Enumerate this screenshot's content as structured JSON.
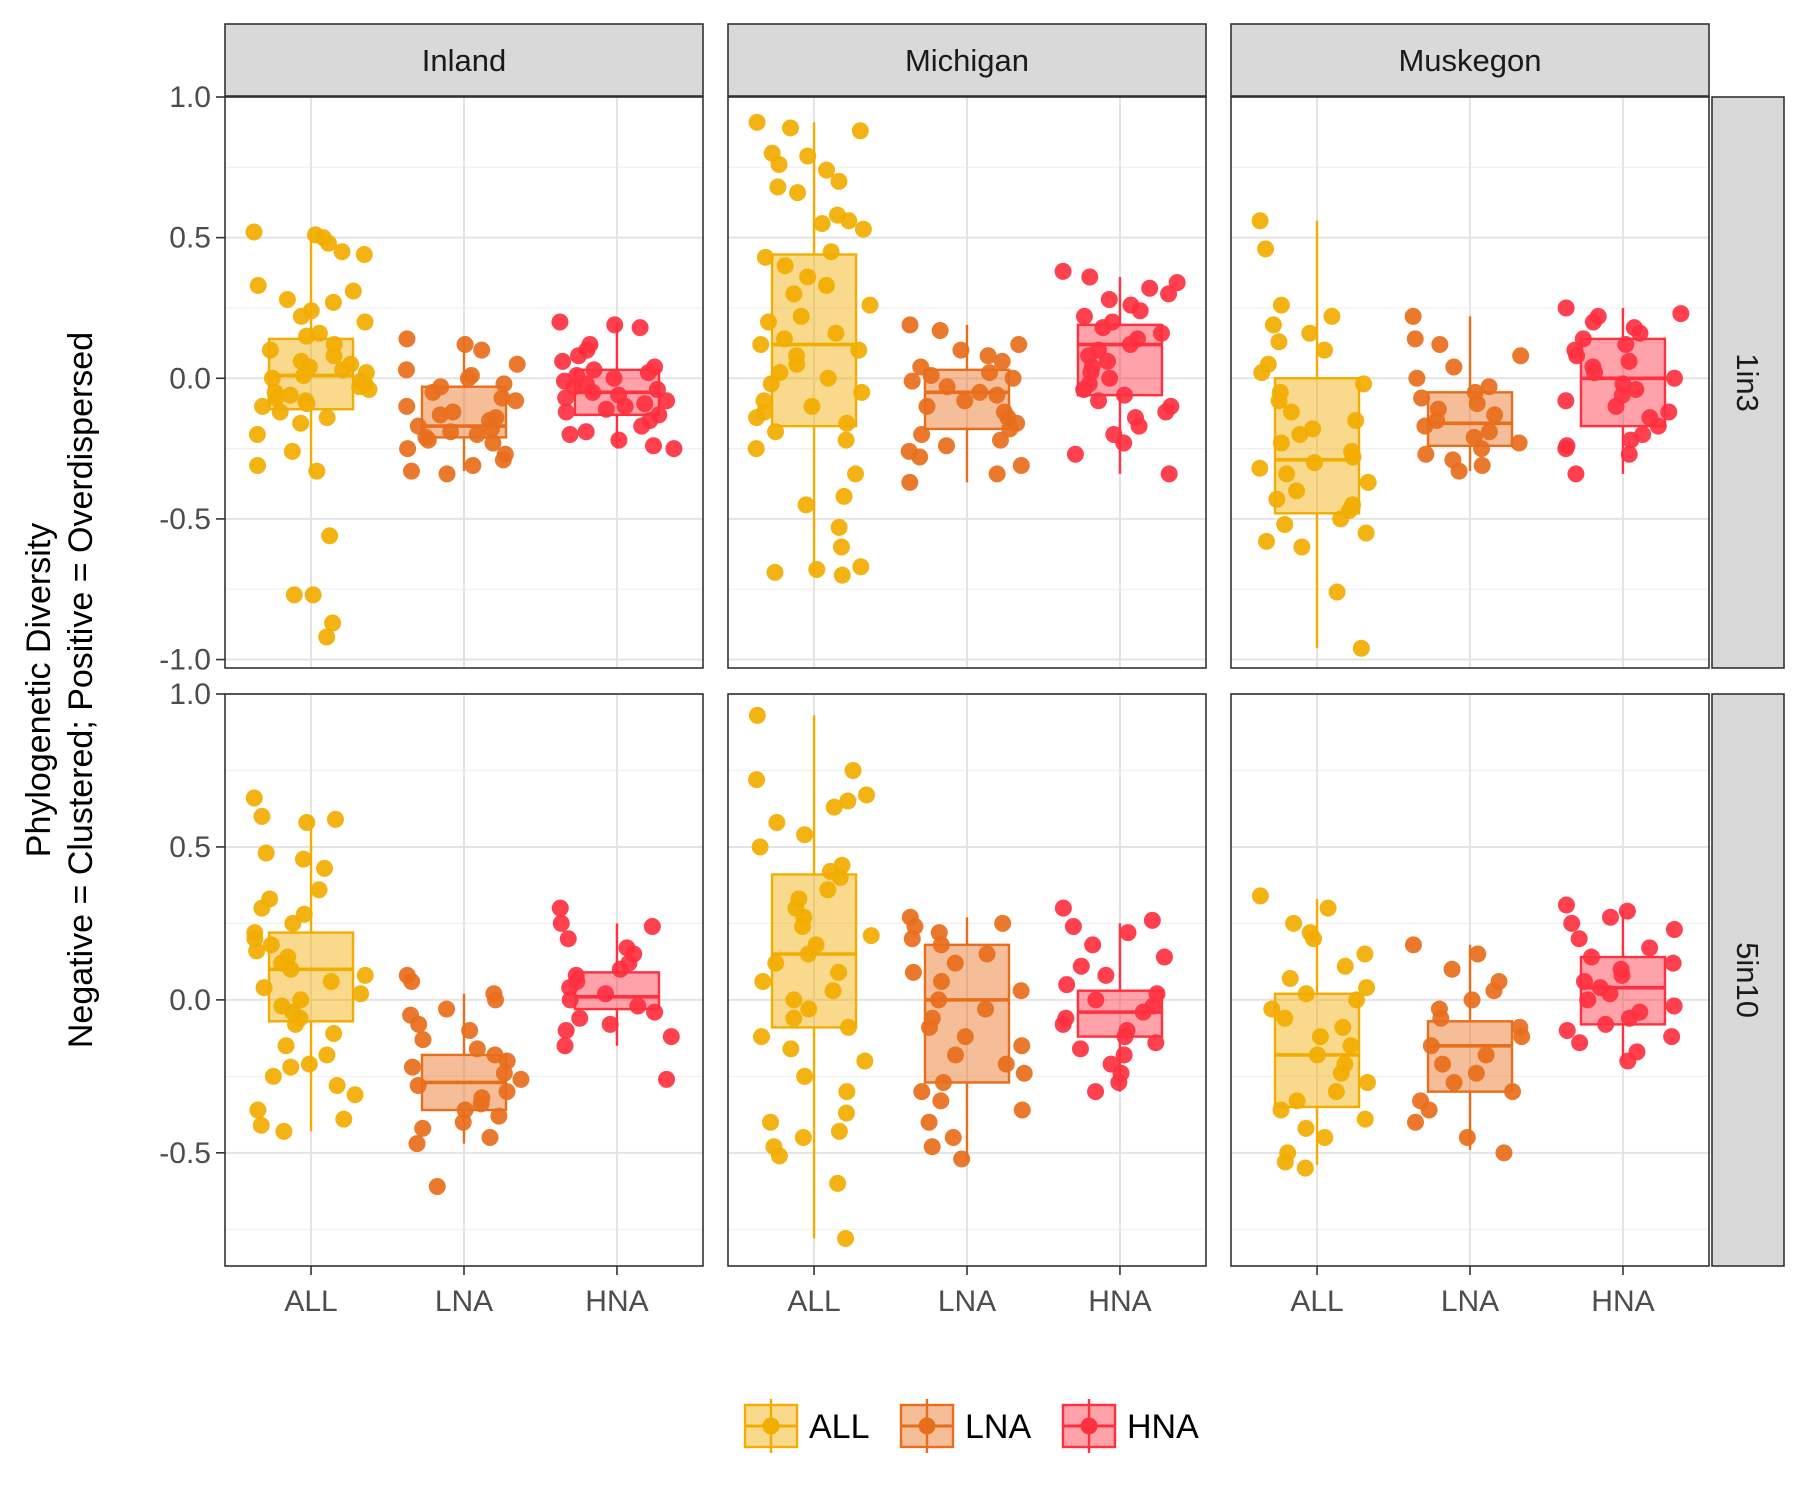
{
  "chart_data": {
    "type": "boxplot",
    "ylabel_lines": [
      "Phylogenetic Diversity",
      "Negative = Clustered; Positive = Overdispersed"
    ],
    "categories": [
      "ALL",
      "LNA",
      "HNA"
    ],
    "colors": {
      "ALL": "#F2AD00",
      "LNA": "#E86E1C",
      "HNA": "#FF3040"
    },
    "legend": {
      "position": "bottom",
      "entries": [
        "ALL",
        "LNA",
        "HNA"
      ]
    },
    "grid": true,
    "facet_columns": [
      "Inland",
      "Michigan",
      "Muskegon"
    ],
    "facet_rows": [
      "1in3",
      "5in10"
    ],
    "rows": [
      {
        "label": "1in3",
        "ylim": [
          -1.03,
          1.0
        ],
        "yticks": [
          -1.0,
          -0.5,
          0.0,
          0.5,
          1.0
        ],
        "ytick_labels": [
          "-1.0",
          "-0.5",
          "0.0",
          "0.5",
          "1.0"
        ]
      },
      {
        "label": "5in10",
        "ylim": [
          -0.87,
          1.0
        ],
        "yticks": [
          -0.5,
          0.0,
          0.5,
          1.0
        ],
        "ytick_labels": [
          "-0.5",
          "0.0",
          "0.5",
          "1.0"
        ]
      }
    ],
    "panels": [
      {
        "row": "1in3",
        "column": "Inland",
        "series": [
          {
            "name": "ALL",
            "min": -0.33,
            "q1": -0.11,
            "median": 0.01,
            "q3": 0.14,
            "max": 0.52,
            "points": [
              0.52,
              0.51,
              0.5,
              0.48,
              0.45,
              0.44,
              0.33,
              0.31,
              0.28,
              0.27,
              0.24,
              0.22,
              0.2,
              0.16,
              0.15,
              0.12,
              0.1,
              0.08,
              0.06,
              0.05,
              0.04,
              0.03,
              0.02,
              0.01,
              0.0,
              -0.01,
              -0.02,
              -0.03,
              -0.04,
              -0.05,
              -0.06,
              -0.07,
              -0.08,
              -0.09,
              -0.1,
              -0.12,
              -0.14,
              -0.16,
              -0.2,
              -0.26,
              -0.31,
              -0.33,
              -0.56,
              -0.77,
              -0.77,
              -0.87,
              -0.92
            ]
          },
          {
            "name": "LNA",
            "min": -0.33,
            "q1": -0.21,
            "median": -0.17,
            "q3": -0.03,
            "max": 0.14,
            "points": [
              0.14,
              0.12,
              0.1,
              0.05,
              0.03,
              0.01,
              0.0,
              -0.02,
              -0.03,
              -0.05,
              -0.07,
              -0.08,
              -0.1,
              -0.12,
              -0.13,
              -0.14,
              -0.15,
              -0.17,
              -0.18,
              -0.19,
              -0.2,
              -0.21,
              -0.22,
              -0.23,
              -0.25,
              -0.27,
              -0.29,
              -0.31,
              -0.33,
              -0.34
            ]
          },
          {
            "name": "HNA",
            "min": -0.25,
            "q1": -0.13,
            "median": -0.05,
            "q3": 0.03,
            "max": 0.2,
            "points": [
              0.2,
              0.19,
              0.18,
              0.12,
              0.1,
              0.08,
              0.06,
              0.04,
              0.03,
              0.02,
              0.01,
              0.0,
              -0.01,
              -0.02,
              -0.03,
              -0.04,
              -0.05,
              -0.06,
              -0.07,
              -0.08,
              -0.09,
              -0.1,
              -0.11,
              -0.12,
              -0.13,
              -0.15,
              -0.17,
              -0.19,
              -0.2,
              -0.22,
              -0.24,
              -0.25
            ]
          }
        ]
      },
      {
        "row": "1in3",
        "column": "Michigan",
        "series": [
          {
            "name": "ALL",
            "min": -0.7,
            "q1": -0.17,
            "median": 0.12,
            "q3": 0.44,
            "max": 0.91,
            "points": [
              0.91,
              0.89,
              0.88,
              0.8,
              0.79,
              0.76,
              0.74,
              0.7,
              0.68,
              0.66,
              0.58,
              0.56,
              0.55,
              0.53,
              0.45,
              0.43,
              0.4,
              0.36,
              0.33,
              0.3,
              0.26,
              0.22,
              0.2,
              0.16,
              0.14,
              0.12,
              0.1,
              0.08,
              0.05,
              0.02,
              0.0,
              -0.02,
              -0.05,
              -0.08,
              -0.1,
              -0.12,
              -0.14,
              -0.16,
              -0.19,
              -0.22,
              -0.25,
              -0.34,
              -0.42,
              -0.45,
              -0.53,
              -0.6,
              -0.67,
              -0.68,
              -0.69,
              -0.7
            ]
          },
          {
            "name": "LNA",
            "min": -0.37,
            "q1": -0.18,
            "median": -0.05,
            "q3": 0.03,
            "max": 0.19,
            "points": [
              0.19,
              0.17,
              0.12,
              0.1,
              0.08,
              0.06,
              0.04,
              0.02,
              0.01,
              0.0,
              -0.01,
              -0.03,
              -0.05,
              -0.06,
              -0.08,
              -0.1,
              -0.12,
              -0.14,
              -0.16,
              -0.18,
              -0.2,
              -0.22,
              -0.24,
              -0.26,
              -0.28,
              -0.31,
              -0.34,
              -0.37
            ]
          },
          {
            "name": "HNA",
            "min": -0.34,
            "q1": -0.06,
            "median": 0.12,
            "q3": 0.19,
            "max": 0.36,
            "points": [
              0.38,
              0.36,
              0.34,
              0.32,
              0.3,
              0.28,
              0.26,
              0.24,
              0.22,
              0.2,
              0.18,
              0.16,
              0.14,
              0.12,
              0.1,
              0.08,
              0.06,
              0.04,
              0.02,
              0.0,
              -0.02,
              -0.04,
              -0.06,
              -0.08,
              -0.1,
              -0.12,
              -0.14,
              -0.17,
              -0.2,
              -0.23,
              -0.27,
              -0.34
            ]
          }
        ]
      },
      {
        "row": "1in3",
        "column": "Muskegon",
        "series": [
          {
            "name": "ALL",
            "min": -0.96,
            "q1": -0.48,
            "median": -0.29,
            "q3": 0.0,
            "max": 0.56,
            "points": [
              0.56,
              0.46,
              0.26,
              0.22,
              0.19,
              0.16,
              0.13,
              0.1,
              0.05,
              0.02,
              -0.02,
              -0.05,
              -0.08,
              -0.12,
              -0.15,
              -0.18,
              -0.2,
              -0.23,
              -0.26,
              -0.28,
              -0.3,
              -0.32,
              -0.34,
              -0.37,
              -0.4,
              -0.43,
              -0.45,
              -0.47,
              -0.5,
              -0.52,
              -0.55,
              -0.58,
              -0.6,
              -0.76,
              -0.96
            ]
          },
          {
            "name": "LNA",
            "min": -0.33,
            "q1": -0.24,
            "median": -0.16,
            "q3": -0.05,
            "max": 0.22,
            "points": [
              0.22,
              0.14,
              0.12,
              0.08,
              0.04,
              0.0,
              -0.03,
              -0.05,
              -0.07,
              -0.09,
              -0.11,
              -0.13,
              -0.15,
              -0.17,
              -0.19,
              -0.21,
              -0.23,
              -0.25,
              -0.27,
              -0.29,
              -0.31,
              -0.33
            ]
          },
          {
            "name": "HNA",
            "min": -0.34,
            "q1": -0.17,
            "median": 0.0,
            "q3": 0.14,
            "max": 0.25,
            "points": [
              0.25,
              0.23,
              0.22,
              0.2,
              0.18,
              0.16,
              0.14,
              0.12,
              0.1,
              0.08,
              0.06,
              0.04,
              0.02,
              0.0,
              -0.02,
              -0.04,
              -0.06,
              -0.08,
              -0.1,
              -0.12,
              -0.14,
              -0.17,
              -0.2,
              -0.22,
              -0.24,
              -0.25,
              -0.27,
              -0.34
            ]
          }
        ]
      },
      {
        "row": "5in10",
        "column": "Inland",
        "series": [
          {
            "name": "ALL",
            "min": -0.43,
            "q1": -0.07,
            "median": 0.1,
            "q3": 0.22,
            "max": 0.6,
            "points": [
              0.66,
              0.6,
              0.59,
              0.58,
              0.48,
              0.46,
              0.43,
              0.36,
              0.33,
              0.3,
              0.28,
              0.25,
              0.22,
              0.2,
              0.18,
              0.16,
              0.14,
              0.12,
              0.1,
              0.08,
              0.06,
              0.04,
              0.02,
              0.0,
              -0.02,
              -0.04,
              -0.06,
              -0.08,
              -0.11,
              -0.15,
              -0.18,
              -0.21,
              -0.22,
              -0.25,
              -0.28,
              -0.31,
              -0.36,
              -0.39,
              -0.41,
              -0.43
            ]
          },
          {
            "name": "LNA",
            "min": -0.47,
            "q1": -0.36,
            "median": -0.27,
            "q3": -0.18,
            "max": 0.02,
            "points": [
              0.08,
              0.06,
              0.02,
              0.0,
              -0.03,
              -0.05,
              -0.08,
              -0.1,
              -0.13,
              -0.16,
              -0.18,
              -0.2,
              -0.22,
              -0.24,
              -0.26,
              -0.28,
              -0.3,
              -0.32,
              -0.34,
              -0.36,
              -0.38,
              -0.4,
              -0.42,
              -0.45,
              -0.47,
              -0.61
            ]
          },
          {
            "name": "HNA",
            "min": -0.15,
            "q1": -0.03,
            "median": 0.01,
            "q3": 0.09,
            "max": 0.25,
            "points": [
              0.3,
              0.25,
              0.24,
              0.2,
              0.17,
              0.15,
              0.12,
              0.1,
              0.08,
              0.06,
              0.04,
              0.02,
              0.0,
              -0.02,
              -0.04,
              -0.06,
              -0.08,
              -0.1,
              -0.12,
              -0.15,
              -0.26
            ]
          }
        ]
      },
      {
        "row": "5in10",
        "column": "Michigan",
        "series": [
          {
            "name": "ALL",
            "min": -0.78,
            "q1": -0.09,
            "median": 0.15,
            "q3": 0.41,
            "max": 0.93,
            "points": [
              0.93,
              0.75,
              0.72,
              0.67,
              0.65,
              0.63,
              0.58,
              0.54,
              0.5,
              0.44,
              0.42,
              0.4,
              0.36,
              0.33,
              0.3,
              0.27,
              0.24,
              0.21,
              0.18,
              0.15,
              0.12,
              0.09,
              0.06,
              0.03,
              0.0,
              -0.03,
              -0.06,
              -0.09,
              -0.12,
              -0.16,
              -0.2,
              -0.25,
              -0.3,
              -0.37,
              -0.4,
              -0.43,
              -0.45,
              -0.48,
              -0.51,
              -0.6,
              -0.78
            ]
          },
          {
            "name": "LNA",
            "min": -0.52,
            "q1": -0.27,
            "median": 0.0,
            "q3": 0.18,
            "max": 0.27,
            "points": [
              0.27,
              0.25,
              0.24,
              0.22,
              0.2,
              0.18,
              0.15,
              0.12,
              0.09,
              0.06,
              0.03,
              0.0,
              -0.03,
              -0.06,
              -0.09,
              -0.12,
              -0.15,
              -0.18,
              -0.21,
              -0.24,
              -0.27,
              -0.3,
              -0.33,
              -0.36,
              -0.4,
              -0.45,
              -0.48,
              -0.52
            ]
          },
          {
            "name": "HNA",
            "min": -0.3,
            "q1": -0.12,
            "median": -0.04,
            "q3": 0.03,
            "max": 0.25,
            "points": [
              0.3,
              0.26,
              0.24,
              0.22,
              0.18,
              0.14,
              0.11,
              0.08,
              0.05,
              0.02,
              0.0,
              -0.02,
              -0.04,
              -0.06,
              -0.08,
              -0.1,
              -0.12,
              -0.14,
              -0.16,
              -0.18,
              -0.21,
              -0.24,
              -0.27,
              -0.3
            ]
          }
        ]
      },
      {
        "row": "5in10",
        "column": "Muskegon",
        "series": [
          {
            "name": "ALL",
            "min": -0.54,
            "q1": -0.35,
            "median": -0.18,
            "q3": 0.02,
            "max": 0.33,
            "points": [
              0.34,
              0.3,
              0.25,
              0.22,
              0.2,
              0.15,
              0.11,
              0.07,
              0.04,
              0.02,
              0.0,
              -0.03,
              -0.06,
              -0.09,
              -0.12,
              -0.15,
              -0.18,
              -0.21,
              -0.24,
              -0.27,
              -0.3,
              -0.33,
              -0.36,
              -0.39,
              -0.42,
              -0.45,
              -0.5,
              -0.53,
              -0.55
            ]
          },
          {
            "name": "LNA",
            "min": -0.49,
            "q1": -0.3,
            "median": -0.15,
            "q3": -0.07,
            "max": 0.18,
            "points": [
              0.18,
              0.15,
              0.1,
              0.06,
              0.03,
              0.0,
              -0.03,
              -0.06,
              -0.09,
              -0.12,
              -0.15,
              -0.18,
              -0.21,
              -0.24,
              -0.27,
              -0.3,
              -0.33,
              -0.36,
              -0.4,
              -0.45,
              -0.5
            ]
          },
          {
            "name": "HNA",
            "min": -0.2,
            "q1": -0.08,
            "median": 0.04,
            "q3": 0.14,
            "max": 0.29,
            "points": [
              0.31,
              0.29,
              0.27,
              0.25,
              0.23,
              0.2,
              0.17,
              0.14,
              0.12,
              0.1,
              0.08,
              0.06,
              0.04,
              0.02,
              0.0,
              -0.02,
              -0.04,
              -0.06,
              -0.08,
              -0.1,
              -0.12,
              -0.14,
              -0.17,
              -0.2
            ]
          }
        ]
      }
    ]
  }
}
